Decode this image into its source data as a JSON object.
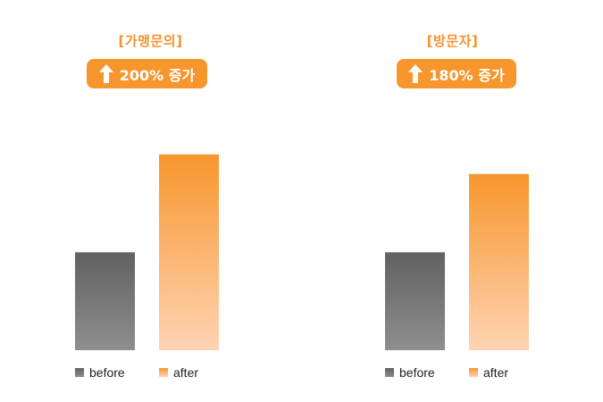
{
  "colors": {
    "accent": "#f7962d",
    "title": "#f5922e",
    "before_top": "#616161",
    "before_bottom": "#8e8e8e",
    "after_top": "#f7962d",
    "after_bottom": "#ffd3b3"
  },
  "chart_data": [
    {
      "type": "bar",
      "title": "[가맹문의]",
      "badge": {
        "icon": "arrow-up-icon",
        "text": "200% 증가"
      },
      "categories": [
        "before",
        "after"
      ],
      "values": [
        100,
        200
      ],
      "legend": [
        "before",
        "after"
      ],
      "ylim": [
        0,
        230
      ],
      "grid": false,
      "legend_position": "bottom"
    },
    {
      "type": "bar",
      "title": "[방문자]",
      "badge": {
        "icon": "arrow-up-icon",
        "text": "180% 증가"
      },
      "categories": [
        "before",
        "after"
      ],
      "values": [
        100,
        180
      ],
      "legend": [
        "before",
        "after"
      ],
      "ylim": [
        0,
        230
      ],
      "grid": false,
      "legend_position": "bottom"
    }
  ]
}
